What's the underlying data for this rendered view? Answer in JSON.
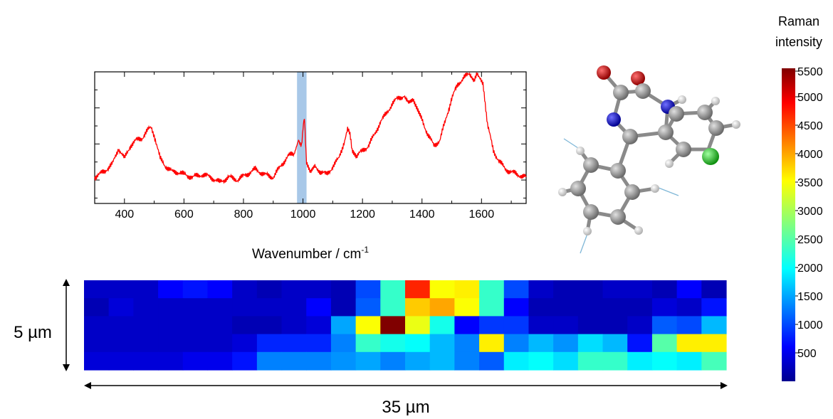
{
  "chart_data": [
    {
      "type": "line",
      "xlabel": "Wavenumber / cm",
      "xlabel_superscript": "-1",
      "ylabel": "",
      "xlim": [
        300,
        1750
      ],
      "ylim": [
        0,
        100
      ],
      "xticks": [
        "400",
        "600",
        "800",
        "1000",
        "1200",
        "1400",
        "1600"
      ],
      "highlight_band": [
        980,
        1012
      ],
      "line_color": "#ff0000",
      "band_color": "#a8c8e8",
      "series": [
        {
          "x": [
            300,
            330,
            360,
            380,
            400,
            420,
            440,
            460,
            480,
            490,
            500,
            520,
            540,
            560,
            580,
            600,
            630,
            660,
            690,
            720,
            750,
            780,
            810,
            840,
            870,
            900,
            930,
            950,
            970,
            985,
            995,
            1000,
            1005,
            1012,
            1025,
            1040,
            1060,
            1080,
            1100,
            1120,
            1140,
            1150,
            1158,
            1165,
            1180,
            1200,
            1220,
            1240,
            1260,
            1280,
            1300,
            1320,
            1340,
            1355,
            1370,
            1385,
            1400,
            1420,
            1440,
            1460,
            1480,
            1500,
            1520,
            1540,
            1560,
            1575,
            1585,
            1595,
            1605,
            1620,
            1640,
            1660,
            1680,
            1700,
            1720,
            1750
          ],
          "y": [
            20,
            24,
            30,
            42,
            34,
            44,
            48,
            50,
            56,
            58,
            52,
            34,
            28,
            24,
            24,
            22,
            20,
            22,
            20,
            16,
            20,
            18,
            22,
            26,
            22,
            20,
            30,
            36,
            38,
            48,
            45,
            56,
            65,
            32,
            24,
            28,
            24,
            22,
            28,
            34,
            48,
            56,
            52,
            40,
            36,
            40,
            44,
            52,
            62,
            68,
            76,
            80,
            82,
            78,
            80,
            72,
            64,
            52,
            44,
            48,
            64,
            80,
            90,
            96,
            98,
            92,
            100,
            96,
            90,
            60,
            40,
            32,
            26,
            24,
            22,
            20
          ]
        }
      ]
    },
    {
      "type": "heatmap",
      "xlabel": "35 µm",
      "ylabel": "5 µm",
      "rows": 5,
      "cols": 26,
      "colorbar": {
        "title_line1": "Raman",
        "title_line2": "intensity",
        "min": 0,
        "max": 5500,
        "ticks": [
          "5500",
          "5000",
          "4500",
          "4000",
          "3500",
          "3000",
          "2500",
          "2000",
          "1500",
          "1000",
          "500"
        ]
      },
      "values": [
        [
          300,
          300,
          300,
          600,
          700,
          600,
          300,
          200,
          300,
          300,
          200,
          1000,
          2300,
          4700,
          3500,
          3600,
          2300,
          1000,
          300,
          200,
          200,
          300,
          300,
          200,
          600,
          200
        ],
        [
          200,
          400,
          300,
          300,
          300,
          300,
          300,
          300,
          300,
          600,
          200,
          1100,
          2300,
          3800,
          4000,
          3500,
          2300,
          600,
          200,
          200,
          200,
          200,
          200,
          400,
          300,
          700
        ],
        [
          300,
          300,
          300,
          300,
          300,
          300,
          200,
          200,
          300,
          400,
          1500,
          3500,
          5500,
          3400,
          2100,
          600,
          900,
          900,
          300,
          300,
          200,
          200,
          300,
          1100,
          1000,
          1600
        ],
        [
          300,
          300,
          300,
          300,
          300,
          300,
          400,
          800,
          800,
          800,
          1300,
          2300,
          2100,
          2000,
          1600,
          1300,
          3600,
          1300,
          1600,
          1400,
          1800,
          1600,
          700,
          2500,
          3600,
          3600
        ],
        [
          400,
          400,
          400,
          400,
          500,
          500,
          700,
          1300,
          1300,
          1300,
          1400,
          1500,
          1300,
          1500,
          1600,
          1300,
          1100,
          1900,
          2000,
          1800,
          2300,
          2300,
          1900,
          2000,
          1900,
          2400
        ]
      ]
    }
  ],
  "molecule": {
    "caption": "",
    "atom_colors": {
      "oxygen": "#d01010",
      "nitrogen": "#2020d0",
      "carbon": "#909090",
      "hydrogen": "#e8e8e8",
      "chlorine": "#20d020"
    }
  }
}
